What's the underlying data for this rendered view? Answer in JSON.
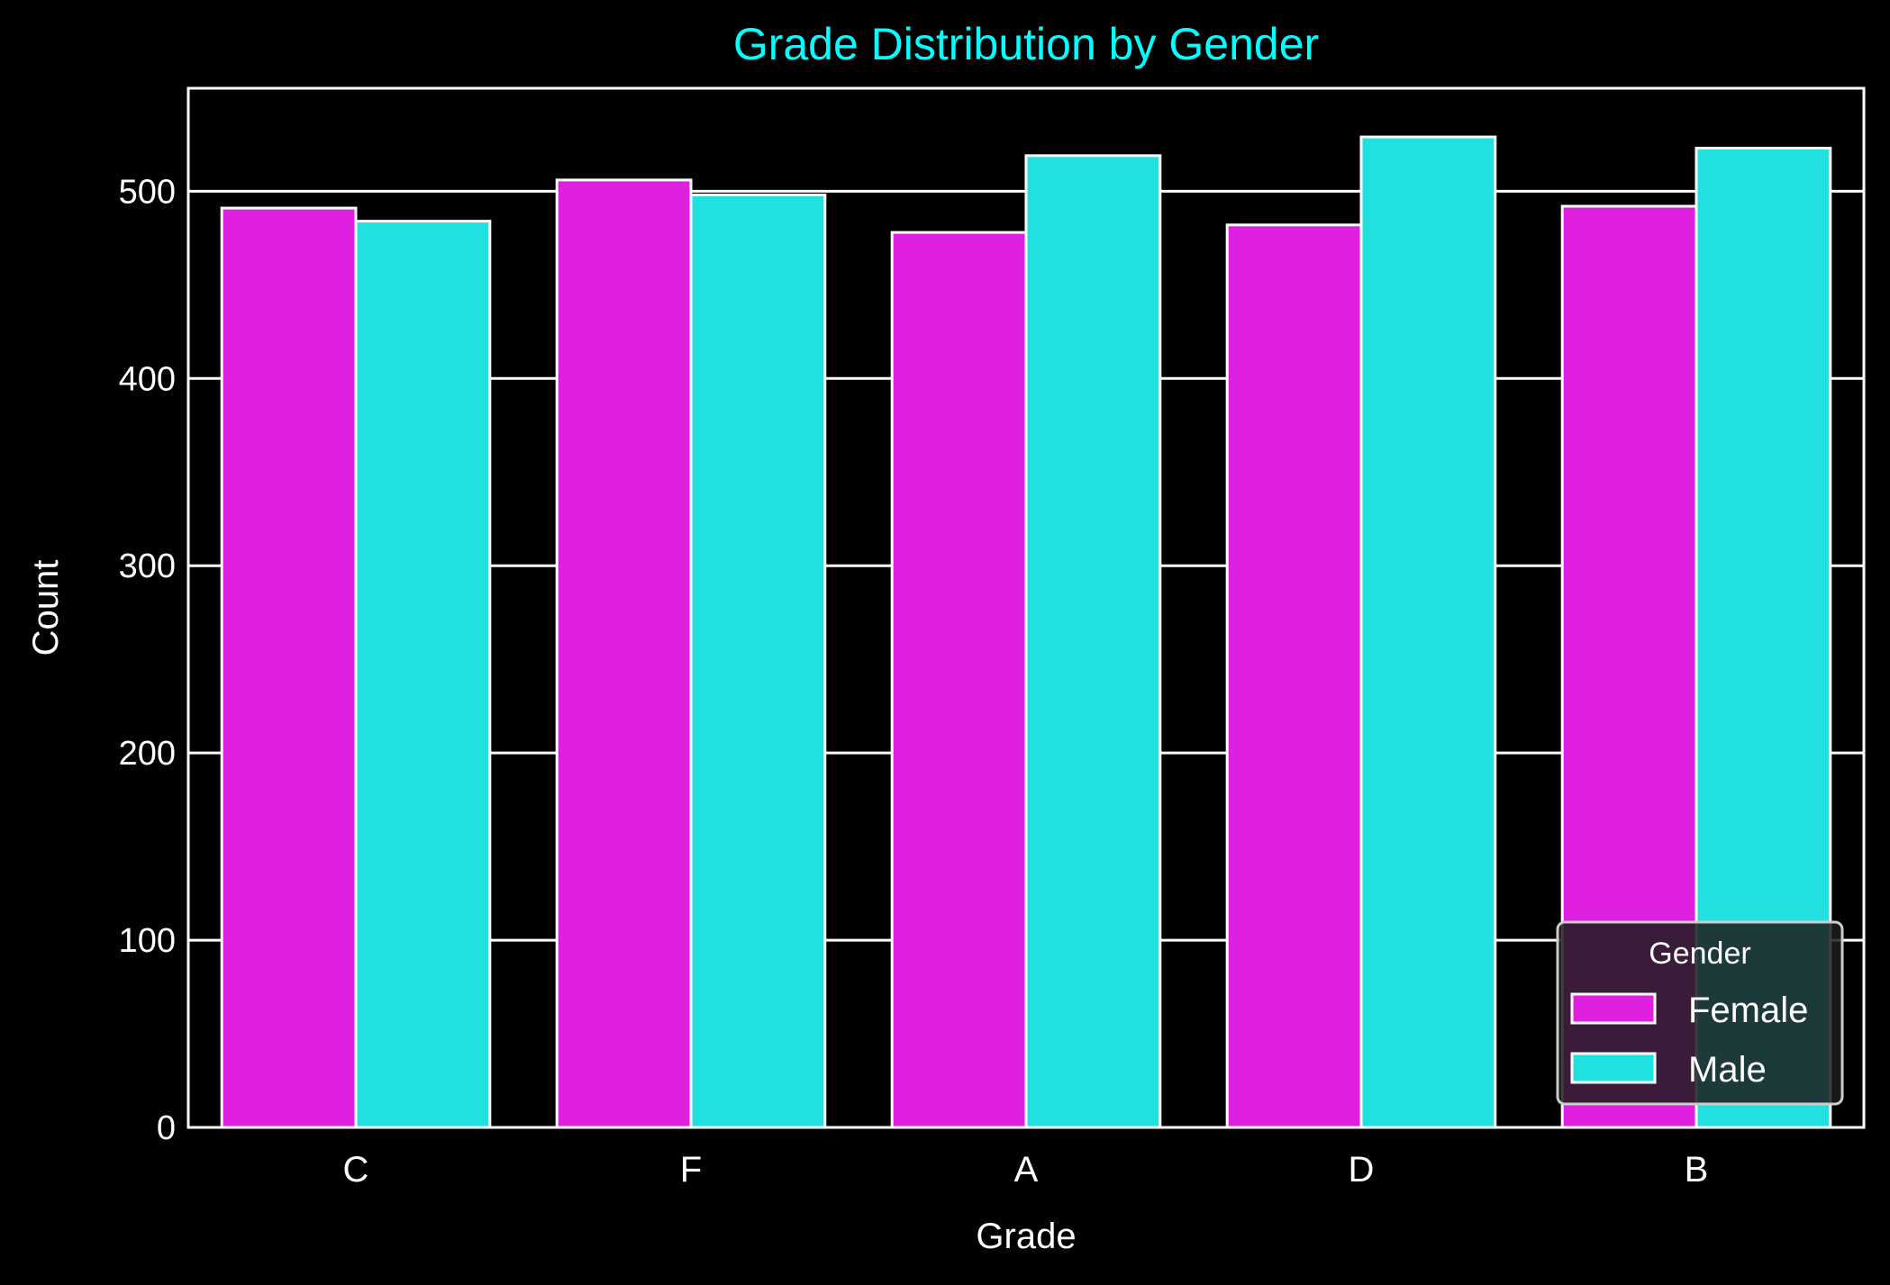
{
  "chart_data": {
    "type": "bar",
    "title": "Grade Distribution by Gender",
    "xlabel": "Grade",
    "ylabel": "Count",
    "categories": [
      "C",
      "F",
      "A",
      "D",
      "B"
    ],
    "series": [
      {
        "name": "Female",
        "values": [
          491,
          506,
          478,
          482,
          492
        ],
        "color": "#e020e0"
      },
      {
        "name": "Male",
        "values": [
          484,
          498,
          519,
          529,
          523
        ],
        "color": "#20e0e0"
      }
    ],
    "ylim": [
      0,
      555
    ],
    "yticks": [
      0,
      100,
      200,
      300,
      400,
      500
    ],
    "grid": true,
    "legend": {
      "title": "Gender",
      "placement": "lower-right"
    },
    "colors": {
      "background": "#000000",
      "title": "#00ffff",
      "text": "#ffffff",
      "grid": "#ffffff",
      "edge": "#ffffff"
    }
  }
}
